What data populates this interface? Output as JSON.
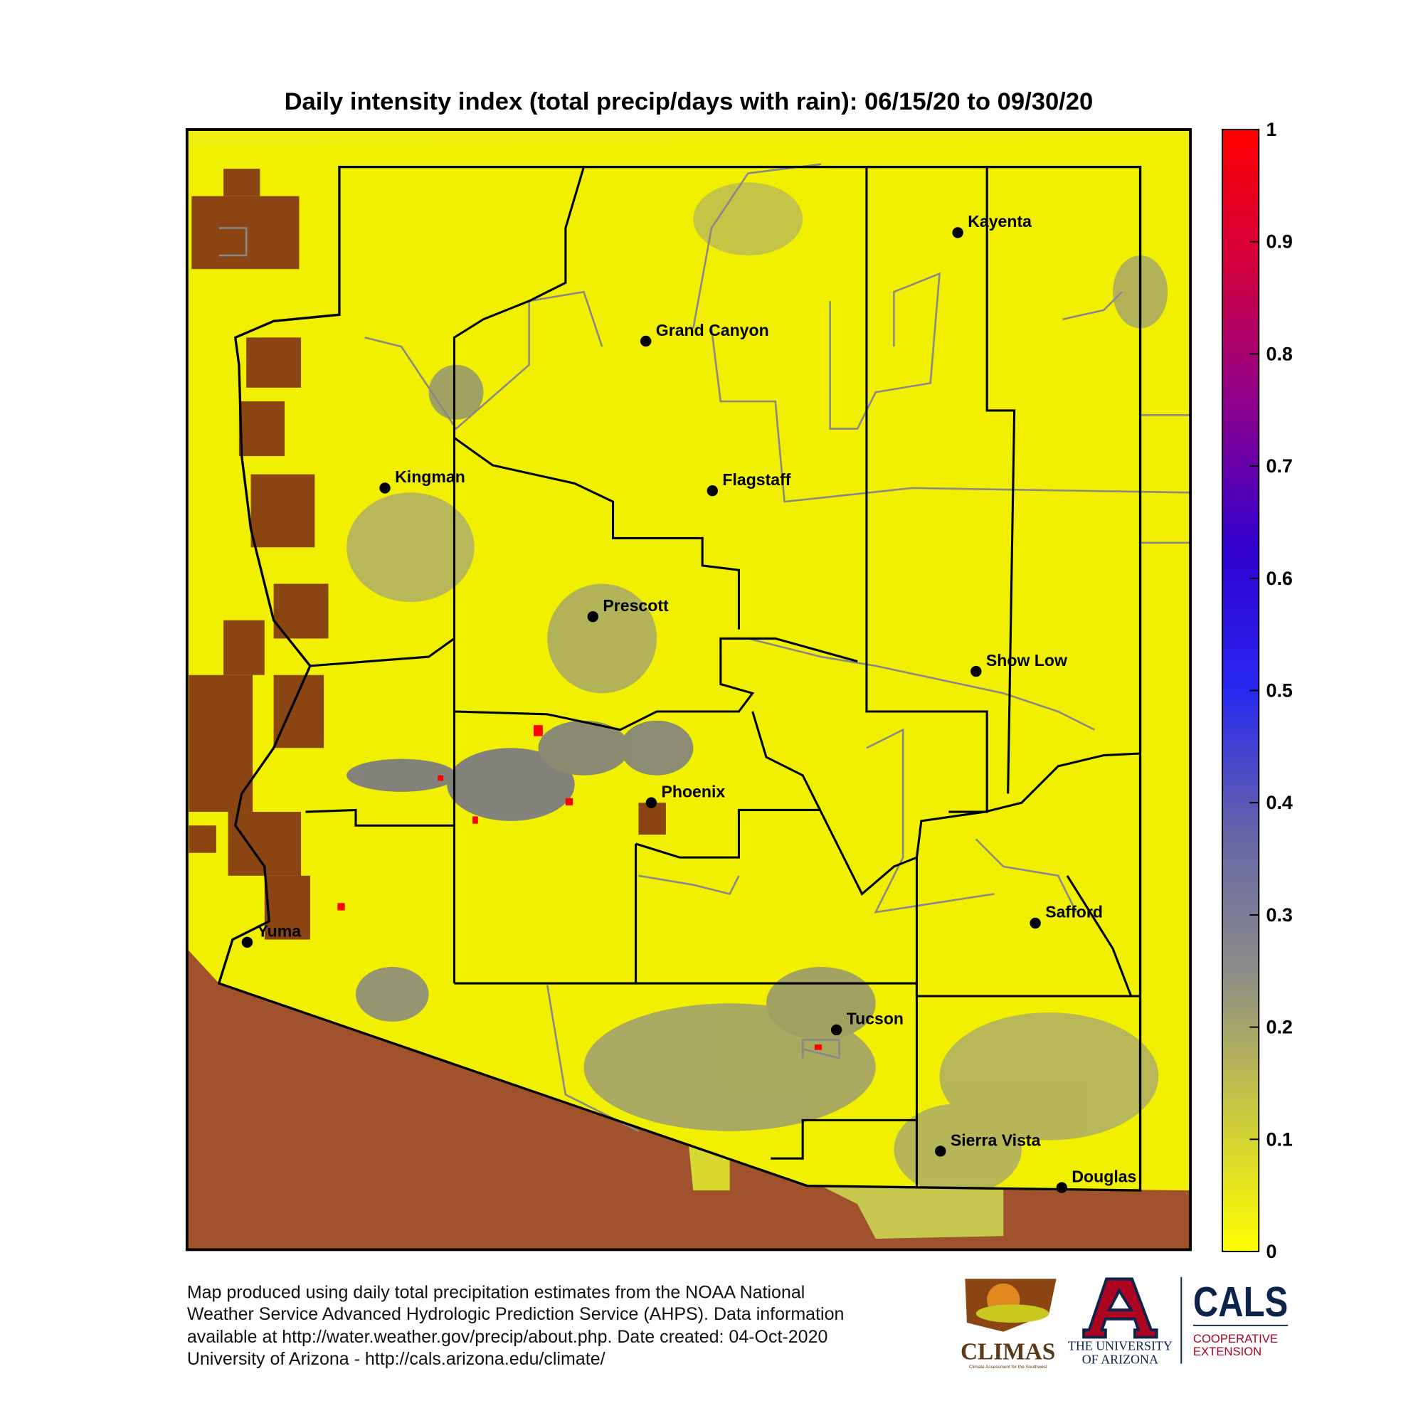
{
  "title": "Daily intensity index (total precip/days with rain): 06/15/20 to 09/30/20",
  "cities": [
    {
      "name": "Kayenta"
    },
    {
      "name": "Grand Canyon"
    },
    {
      "name": "Kingman"
    },
    {
      "name": "Flagstaff"
    },
    {
      "name": "Prescott"
    },
    {
      "name": "Show Low"
    },
    {
      "name": "Phoenix"
    },
    {
      "name": "Safford"
    },
    {
      "name": "Yuma"
    },
    {
      "name": "Tucson"
    },
    {
      "name": "Sierra Vista"
    },
    {
      "name": "Douglas"
    }
  ],
  "colorbar": {
    "lim": [
      0,
      1
    ],
    "ticks": [
      0,
      0.1,
      0.2,
      0.3,
      0.4,
      0.5,
      0.6,
      0.7,
      0.8,
      0.9,
      1
    ],
    "colors": [
      "#ffff00",
      "#c8c840",
      "#8c8c88",
      "#6464a8",
      "#2828f0",
      "#3000d0",
      "#8a0090",
      "#d00040",
      "#ff0000"
    ]
  },
  "footer": [
    "Map produced using daily total precipitation estimates from the NOAA National",
    "Weather Service Advanced Hydrologic Prediction Service (AHPS). Data information",
    "available at http://water.weather.gov/precip/about.php. Date created: 04-Oct-2020",
    "University of Arizona - http://cals.arizona.edu/climate/"
  ],
  "logos": {
    "climas": "CLIMAS",
    "climas_sub": "Climate Assessment for the Southwest",
    "ua_line1": "THE UNIVERSITY",
    "ua_line2": "OF ARIZONA",
    "cals": "CALS",
    "cals_line1": "COOPERATIVE",
    "cals_line2": "EXTENSION"
  }
}
